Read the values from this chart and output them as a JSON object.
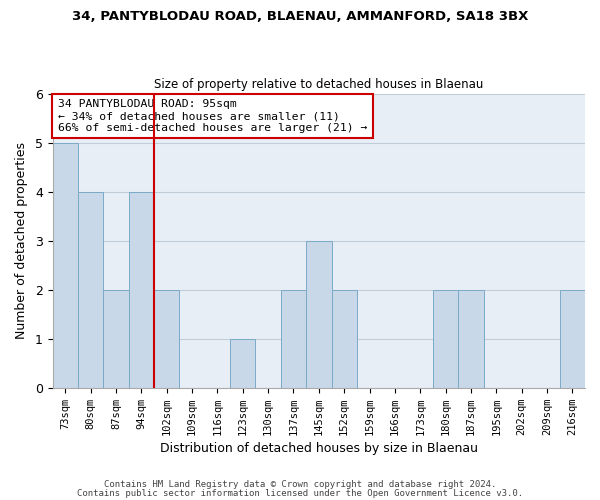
{
  "title": "34, PANTYBLODAU ROAD, BLAENAU, AMMANFORD, SA18 3BX",
  "subtitle": "Size of property relative to detached houses in Blaenau",
  "xlabel": "Distribution of detached houses by size in Blaenau",
  "ylabel": "Number of detached properties",
  "bins": [
    "73sqm",
    "80sqm",
    "87sqm",
    "94sqm",
    "102sqm",
    "109sqm",
    "116sqm",
    "123sqm",
    "130sqm",
    "137sqm",
    "145sqm",
    "152sqm",
    "159sqm",
    "166sqm",
    "173sqm",
    "180sqm",
    "187sqm",
    "195sqm",
    "202sqm",
    "209sqm",
    "216sqm"
  ],
  "counts": [
    5,
    4,
    2,
    4,
    2,
    0,
    0,
    1,
    0,
    2,
    3,
    2,
    0,
    0,
    0,
    2,
    2,
    0,
    0,
    0,
    2
  ],
  "property_line_x": 3.5,
  "annotation_line1": "34 PANTYBLODAU ROAD: 95sqm",
  "annotation_line2": "← 34% of detached houses are smaller (11)",
  "annotation_line3": "66% of semi-detached houses are larger (21) →",
  "bar_color": "#c8d8e8",
  "bar_edge_color": "#7aaac8",
  "property_line_color": "#cc0000",
  "annotation_box_edge": "#cc0000",
  "grid_color": "#c0ccd8",
  "background_color": "#e8eef5",
  "ylim": [
    0,
    6
  ],
  "footer1": "Contains HM Land Registry data © Crown copyright and database right 2024.",
  "footer2": "Contains public sector information licensed under the Open Government Licence v3.0."
}
